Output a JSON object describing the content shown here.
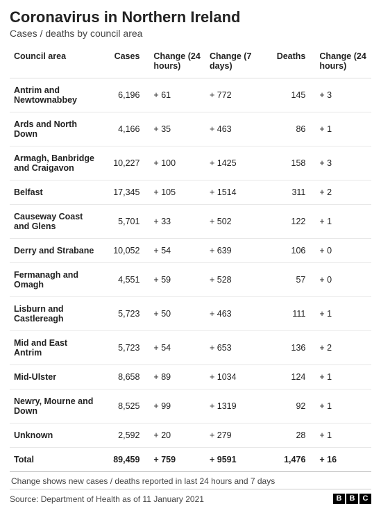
{
  "title": "Coronavirus in Northern Ireland",
  "subtitle": "Cases / deaths by council area",
  "table": {
    "type": "table",
    "columns": [
      {
        "key": "area",
        "label": "Council area"
      },
      {
        "key": "cases",
        "label": "Cases"
      },
      {
        "key": "cases_change_24h",
        "label": "Change (24 hours)"
      },
      {
        "key": "cases_change_7d",
        "label": "Change (7 days)"
      },
      {
        "key": "deaths",
        "label": "Deaths"
      },
      {
        "key": "deaths_change_24h",
        "label": "Change (24 hours)"
      }
    ],
    "rows": [
      {
        "area": "Antrim and Newtownabbey",
        "cases": "6,196",
        "cases_change_24h": "+ 61",
        "cases_change_7d": "+ 772",
        "deaths": "145",
        "deaths_change_24h": "+ 3"
      },
      {
        "area": "Ards and North Down",
        "cases": "4,166",
        "cases_change_24h": "+ 35",
        "cases_change_7d": "+ 463",
        "deaths": "86",
        "deaths_change_24h": "+ 1"
      },
      {
        "area": "Armagh, Banbridge and Craigavon",
        "cases": "10,227",
        "cases_change_24h": "+ 100",
        "cases_change_7d": "+ 1425",
        "deaths": "158",
        "deaths_change_24h": "+ 3"
      },
      {
        "area": "Belfast",
        "cases": "17,345",
        "cases_change_24h": "+ 105",
        "cases_change_7d": "+ 1514",
        "deaths": "311",
        "deaths_change_24h": "+ 2"
      },
      {
        "area": "Causeway Coast and Glens",
        "cases": "5,701",
        "cases_change_24h": "+ 33",
        "cases_change_7d": "+ 502",
        "deaths": "122",
        "deaths_change_24h": "+ 1"
      },
      {
        "area": "Derry and Strabane",
        "cases": "10,052",
        "cases_change_24h": "+ 54",
        "cases_change_7d": "+ 639",
        "deaths": "106",
        "deaths_change_24h": "+ 0"
      },
      {
        "area": "Fermanagh and Omagh",
        "cases": "4,551",
        "cases_change_24h": "+ 59",
        "cases_change_7d": "+ 528",
        "deaths": "57",
        "deaths_change_24h": "+ 0"
      },
      {
        "area": "Lisburn and Castlereagh",
        "cases": "5,723",
        "cases_change_24h": "+ 50",
        "cases_change_7d": "+ 463",
        "deaths": "111",
        "deaths_change_24h": "+ 1"
      },
      {
        "area": "Mid and East Antrim",
        "cases": "5,723",
        "cases_change_24h": "+ 54",
        "cases_change_7d": "+ 653",
        "deaths": "136",
        "deaths_change_24h": "+ 2"
      },
      {
        "area": "Mid-Ulster",
        "cases": "8,658",
        "cases_change_24h": "+ 89",
        "cases_change_7d": "+ 1034",
        "deaths": "124",
        "deaths_change_24h": "+ 1"
      },
      {
        "area": "Newry, Mourne and Down",
        "cases": "8,525",
        "cases_change_24h": "+ 99",
        "cases_change_7d": "+ 1319",
        "deaths": "92",
        "deaths_change_24h": "+ 1"
      },
      {
        "area": "Unknown",
        "cases": "2,592",
        "cases_change_24h": "+ 20",
        "cases_change_7d": "+ 279",
        "deaths": "28",
        "deaths_change_24h": "+ 1"
      }
    ],
    "total": {
      "area": "Total",
      "cases": "89,459",
      "cases_change_24h": "+ 759",
      "cases_change_7d": "+ 9591",
      "deaths": "1,476",
      "deaths_change_24h": "+ 16"
    },
    "border_color": "#e8e8e8",
    "header_border_color": "#dcdcdc",
    "font_size": 12.5
  },
  "footnote": "Change shows new cases / deaths reported in last 24 hours and 7 days",
  "source": "Source: Department of Health as of 11 January 2021",
  "logo": {
    "letters": [
      "B",
      "B",
      "C"
    ],
    "bg": "#000000",
    "fg": "#ffffff"
  },
  "colors": {
    "background": "#ffffff",
    "text": "#222222",
    "muted": "#444444"
  }
}
